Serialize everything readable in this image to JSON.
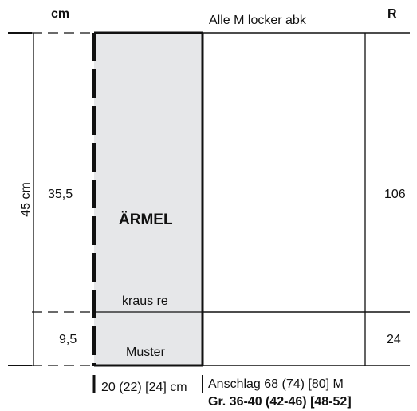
{
  "header": {
    "unit_cm": "cm",
    "instruction_top": "Alle M locker abk",
    "unit_rows": "R"
  },
  "total_height": "45 cm",
  "sections": {
    "upper": {
      "height_cm": "35,5",
      "rows": "106",
      "stitch_label": "kraus re"
    },
    "lower": {
      "height_cm": "9,5",
      "rows": "24",
      "pattern_label": "Muster"
    }
  },
  "piece_label": "ÄRMEL",
  "bottom": {
    "width": "20 (22) [24] cm",
    "cast_on": "Anschlag 68 (74) [80] M",
    "sizes": "Gr. 36-40 (42-46) [48-52]"
  },
  "colors": {
    "piece_fill": "#e6e7e9",
    "line": "#111111"
  }
}
